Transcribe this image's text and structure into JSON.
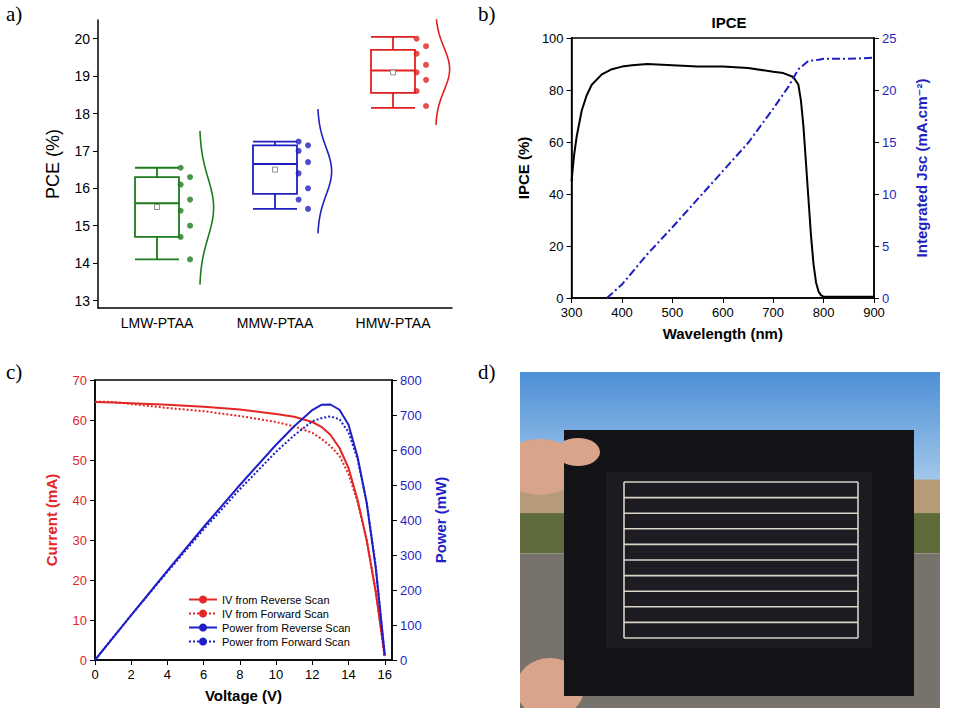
{
  "chart_data": [
    {
      "panel": "a)",
      "type": "boxplot",
      "y_label": "PCE (%)",
      "categories": [
        "LMW-PTAA",
        "MMW-PTAA",
        "HMW-PTAA"
      ],
      "colors": [
        "#1e7b1e",
        "#1f1fc0",
        "#e02020"
      ],
      "stats": [
        [
          14.1,
          14.7,
          15.6,
          16.3,
          16.55
        ],
        [
          15.45,
          15.85,
          16.65,
          17.15,
          17.25
        ],
        [
          18.15,
          18.55,
          19.15,
          19.7,
          20.05
        ]
      ],
      "means": [
        15.5,
        16.5,
        19.1
      ],
      "points": [
        [
          16.55,
          16.3,
          16.1,
          15.7,
          15.4,
          15.0,
          14.7,
          14.1
        ],
        [
          17.25,
          17.15,
          17.0,
          16.7,
          16.4,
          16.0,
          15.7,
          15.45
        ],
        [
          20.0,
          19.8,
          19.6,
          19.3,
          19.1,
          18.9,
          18.6,
          18.2
        ]
      ],
      "ylim": [
        12.8,
        20.5
      ],
      "yticks": [
        13,
        14,
        15,
        16,
        17,
        18,
        19,
        20
      ]
    },
    {
      "panel": "b)",
      "type": "line",
      "title": "IPCE",
      "x_label": "Wavelength (nm)",
      "y_label": "IPCE (%)",
      "y2_label": "Integrated Jsc (mA.cm⁻²)",
      "xlim": [
        300,
        900
      ],
      "xticks": [
        300,
        400,
        500,
        600,
        700,
        800,
        900
      ],
      "ylim": [
        0,
        100
      ],
      "yticks": [
        0,
        20,
        40,
        60,
        80,
        100
      ],
      "y2lim": [
        0,
        25
      ],
      "y2ticks": [
        0,
        5,
        10,
        15,
        20,
        25
      ],
      "series": [
        {
          "color": "#000000",
          "line_style": "solid",
          "x": [
            300,
            305,
            310,
            320,
            330,
            340,
            360,
            380,
            400,
            420,
            450,
            500,
            550,
            600,
            650,
            700,
            720,
            740,
            750,
            755,
            760,
            765,
            770,
            775,
            780,
            785,
            790,
            795,
            800,
            820,
            850,
            900
          ],
          "values": [
            45,
            55,
            62,
            72,
            78,
            82,
            86,
            88,
            89,
            89.5,
            90,
            89.5,
            89,
            89,
            88.5,
            87,
            86.5,
            85,
            82,
            76,
            66,
            52,
            38,
            24,
            13,
            6,
            2.5,
            1,
            0.5,
            0.5,
            0.5,
            0.5
          ]
        },
        {
          "color": "#1f1fc0",
          "line_style": "dashdot",
          "axis": "y2",
          "x": [
            370,
            400,
            450,
            500,
            550,
            600,
            650,
            700,
            730,
            750,
            770,
            790,
            800,
            850,
            900
          ],
          "values": [
            0,
            1.3,
            4.2,
            6.8,
            9.5,
            12.2,
            14.9,
            18.2,
            20.3,
            22,
            22.8,
            22.9,
            23,
            23,
            23.1
          ]
        }
      ]
    },
    {
      "panel": "c)",
      "type": "line",
      "x_label": "Voltage (V)",
      "y_label": "Current (mA)",
      "y2_label": "Power (mW)",
      "xlim": [
        0,
        16.4
      ],
      "xticks": [
        0,
        2,
        4,
        6,
        8,
        10,
        12,
        14,
        16
      ],
      "ylim": [
        0,
        70
      ],
      "yticks": [
        0,
        10,
        20,
        30,
        40,
        50,
        60,
        70
      ],
      "y2lim": [
        0,
        800
      ],
      "y2ticks": [
        0,
        100,
        200,
        300,
        400,
        500,
        600,
        700,
        800
      ],
      "legend": "lower left",
      "series": [
        {
          "name": "IV from Reverse Scan",
          "color": "#e32626",
          "line_style": "solid",
          "x": [
            0,
            1,
            2,
            4,
            6,
            8,
            10,
            11,
            12,
            12.5,
            13,
            13.5,
            14,
            14.5,
            15,
            15.5,
            16
          ],
          "values": [
            64.5,
            64.4,
            64.2,
            63.8,
            63.3,
            62.6,
            61.5,
            60.8,
            59.5,
            58.3,
            56.3,
            53,
            48,
            40,
            30,
            17,
            1
          ]
        },
        {
          "name": "IV from Forward Scan",
          "color": "#e32626",
          "line_style": "dotted",
          "x": [
            0,
            1,
            2,
            4,
            6,
            8,
            10,
            11,
            12,
            12.5,
            13,
            13.5,
            14,
            14.5,
            15,
            15.5,
            16
          ],
          "values": [
            64.6,
            64.5,
            64,
            63,
            62.2,
            61,
            59.5,
            58.4,
            56.8,
            55.3,
            53.5,
            51,
            46.5,
            39.5,
            30,
            17.5,
            0.5
          ]
        },
        {
          "name": "Power from Reverse Scan",
          "color": "#1f1fc8",
          "line_style": "solid",
          "axis": "y2",
          "x": [
            0,
            1,
            2,
            4,
            6,
            8,
            10,
            11,
            12,
            12.5,
            13,
            13.5,
            14,
            14.5,
            15,
            15.5,
            16
          ],
          "values": [
            0,
            64,
            128,
            255,
            380,
            500,
            615,
            668,
            714,
            729,
            730,
            715,
            672,
            580,
            450,
            264,
            16
          ]
        },
        {
          "name": "Power from Forward Scan",
          "color": "#1f1fc8",
          "line_style": "dotted",
          "axis": "y2",
          "x": [
            0,
            1,
            2,
            4,
            6,
            8,
            10,
            11,
            12,
            12.5,
            13,
            13.5,
            14,
            14.5,
            15,
            15.5,
            16
          ],
          "values": [
            0,
            65,
            128,
            252,
            373,
            488,
            595,
            642,
            682,
            691,
            696,
            688,
            651,
            573,
            450,
            271,
            8
          ]
        }
      ]
    },
    {
      "panel": "d)",
      "type": "photo"
    }
  ]
}
